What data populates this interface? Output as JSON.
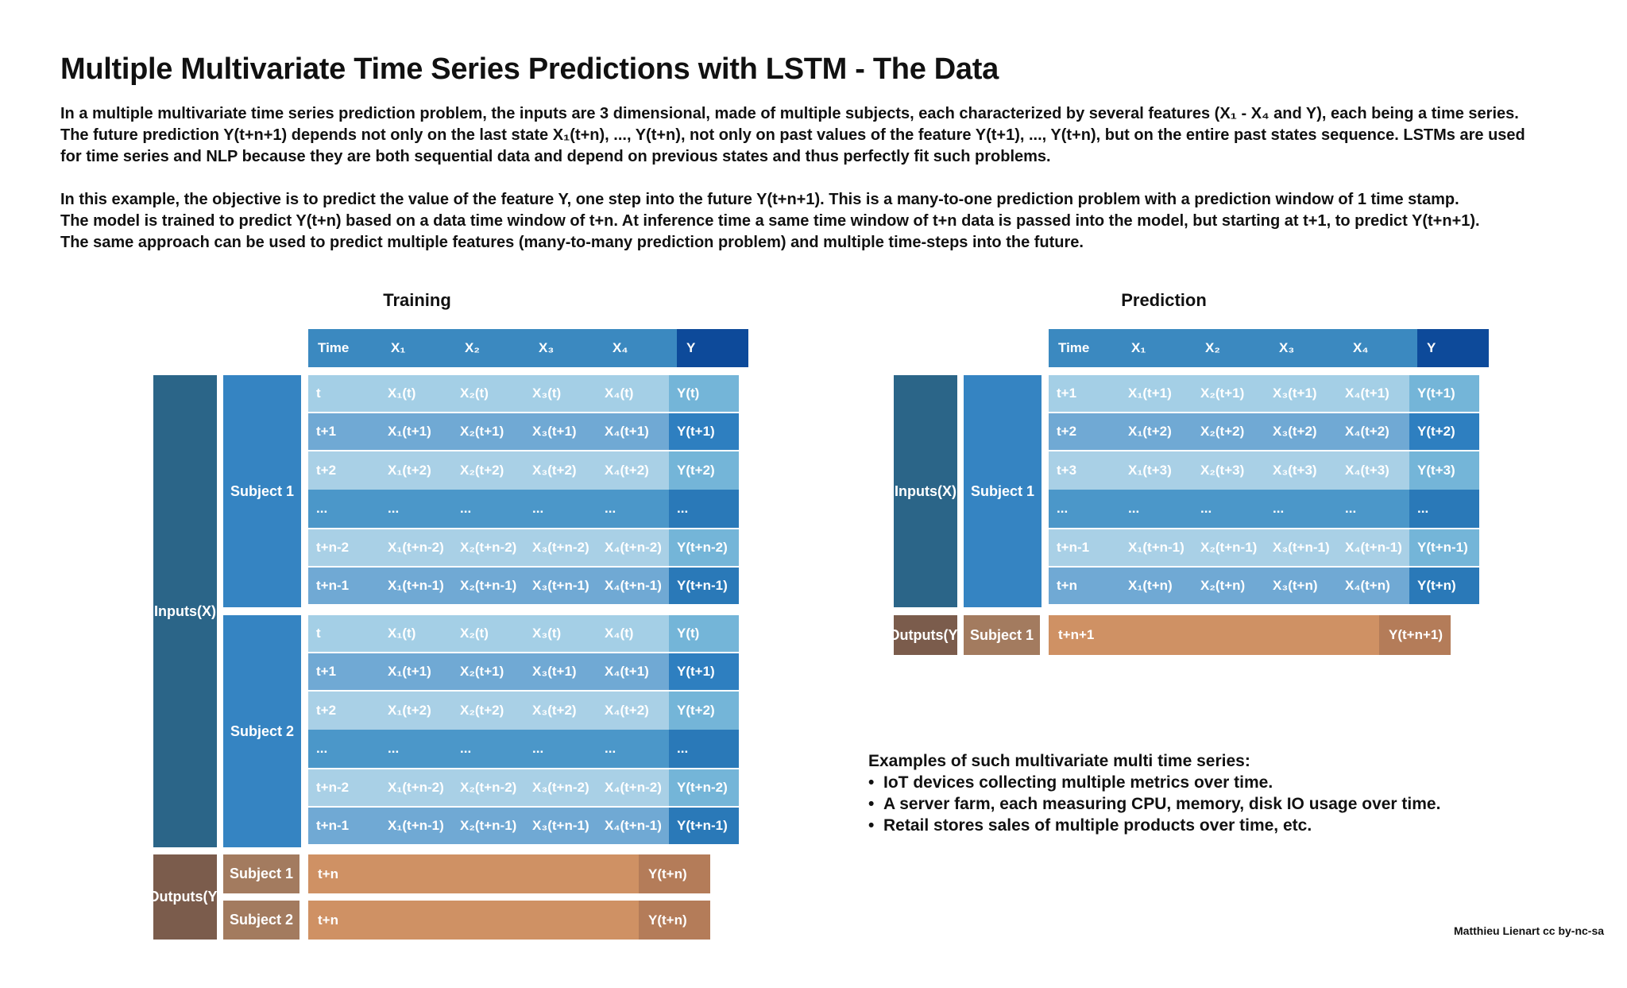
{
  "title": "Multiple Multivariate Time Series Predictions with LSTM - The Data",
  "intro_lines": [
    "In a multiple multivariate time series prediction problem, the inputs are 3 dimensional, made of multiple subjects, each characterized by several features (X₁ - X₄ and Y), each being a time series.",
    "The future prediction Y(t+n+1) depends not only on the last state X₁(t+n), ..., Y(t+n), not only on past values of the feature Y(t+1), ..., Y(t+n), but on the entire past states sequence. LSTMs are used",
    "for time series and NLP because they are both sequential data and depend on previous states and thus perfectly fit such problems."
  ],
  "example_lines": [
    "In this example, the objective is to predict the value of the feature Y, one step into the future Y(t+n+1). This is a many-to-one prediction problem with a prediction window of 1 time stamp.",
    "The model is trained to predict Y(t+n) based on a data time window of  t+n. At inference time a same time window of t+n data is passed into the model, but starting at t+1, to predict Y(t+n+1).",
    "The same approach can be used to predict multiple features (many-to-many prediction problem) and multiple time-steps into the future."
  ],
  "columns": [
    "Time",
    "X₁",
    "X₂",
    "X₃",
    "X₄",
    "Y"
  ],
  "training": {
    "title": "Training",
    "inputs_label": [
      "Inputs",
      "(X)"
    ],
    "outputs_label": [
      "Outputs",
      "(Y)"
    ],
    "subjects": [
      {
        "name": "Subject 1",
        "rows": [
          [
            "t",
            "X₁(t)",
            "X₂(t)",
            "X₃(t)",
            "X₄(t)",
            "Y(t)"
          ],
          [
            "t+1",
            "X₁(t+1)",
            "X₂(t+1)",
            "X₃(t+1)",
            "X₄(t+1)",
            "Y(t+1)"
          ],
          [
            "t+2",
            "X₁(t+2)",
            "X₂(t+2)",
            "X₃(t+2)",
            "X₄(t+2)",
            "Y(t+2)"
          ],
          [
            "...",
            "...",
            "...",
            "...",
            "...",
            "..."
          ],
          [
            "t+n-2",
            "X₁(t+n-2)",
            "X₂(t+n-2)",
            "X₃(t+n-2)",
            "X₄(t+n-2)",
            "Y(t+n-2)"
          ],
          [
            "t+n-1",
            "X₁(t+n-1)",
            "X₂(t+n-1)",
            "X₃(t+n-1)",
            "X₄(t+n-1)",
            "Y(t+n-1)"
          ]
        ]
      },
      {
        "name": "Subject 2",
        "rows": [
          [
            "t",
            "X₁(t)",
            "X₂(t)",
            "X₃(t)",
            "X₄(t)",
            "Y(t)"
          ],
          [
            "t+1",
            "X₁(t+1)",
            "X₂(t+1)",
            "X₃(t+1)",
            "X₄(t+1)",
            "Y(t+1)"
          ],
          [
            "t+2",
            "X₁(t+2)",
            "X₂(t+2)",
            "X₃(t+2)",
            "X₄(t+2)",
            "Y(t+2)"
          ],
          [
            "...",
            "...",
            "...",
            "...",
            "...",
            "..."
          ],
          [
            "t+n-2",
            "X₁(t+n-2)",
            "X₂(t+n-2)",
            "X₃(t+n-2)",
            "X₄(t+n-2)",
            "Y(t+n-2)"
          ],
          [
            "t+n-1",
            "X₁(t+n-1)",
            "X₂(t+n-1)",
            "X₃(t+n-1)",
            "X₄(t+n-1)",
            "Y(t+n-1)"
          ]
        ]
      }
    ],
    "outputs": [
      {
        "subject": "Subject 1",
        "time": "t+n",
        "y": "Y(t+n)"
      },
      {
        "subject": "Subject 2",
        "time": "t+n",
        "y": "Y(t+n)"
      }
    ]
  },
  "prediction": {
    "title": "Prediction",
    "inputs_label": [
      "Inputs",
      "(X)"
    ],
    "outputs_label": [
      "Outputs",
      "(Y)"
    ],
    "subject": "Subject 1",
    "rows": [
      [
        "t+1",
        "X₁(t+1)",
        "X₂(t+1)",
        "X₃(t+1)",
        "X₄(t+1)",
        "Y(t+1)"
      ],
      [
        "t+2",
        "X₁(t+2)",
        "X₂(t+2)",
        "X₃(t+2)",
        "X₄(t+2)",
        "Y(t+2)"
      ],
      [
        "t+3",
        "X₁(t+3)",
        "X₂(t+3)",
        "X₃(t+3)",
        "X₄(t+3)",
        "Y(t+3)"
      ],
      [
        "...",
        "...",
        "...",
        "...",
        "...",
        "..."
      ],
      [
        "t+n-1",
        "X₁(t+n-1)",
        "X₂(t+n-1)",
        "X₃(t+n-1)",
        "X₄(t+n-1)",
        "Y(t+n-1)"
      ],
      [
        "t+n",
        "X₁(t+n)",
        "X₂(t+n)",
        "X₃(t+n)",
        "X₄(t+n)",
        "Y(t+n)"
      ]
    ],
    "output": {
      "subject": "Subject 1",
      "time": "t+n+1",
      "y": "Y(t+n+1)"
    }
  },
  "examples": {
    "heading": "Examples of such multivariate multi time series:",
    "items": [
      "IoT devices collecting multiple metrics over time.",
      "A server farm, each measuring CPU, memory, disk IO usage over time.",
      "Retail stores sales of multiple products over time, etc."
    ]
  },
  "credit": "Matthieu Lienart cc by-nc-sa",
  "colors": {
    "inputs_block": "#2b6588",
    "subject_block": "#3584c2",
    "header": "#3b89c0",
    "header_y": "#0d4a9a",
    "outputs_block": "#7b5c4c",
    "output_subject": "#a37b5f",
    "output_row": "#cf9164",
    "output_y": "#b47c59",
    "row_light": "#a4cfe6",
    "row_light_y": "#74b5d8",
    "row_mid": "#70a9d4",
    "row_mid_y": "#2e7fc0",
    "row_pale": "#a9d0e6",
    "row_dark": "#4b97c9",
    "row_dark_y": "#2a79b8"
  }
}
